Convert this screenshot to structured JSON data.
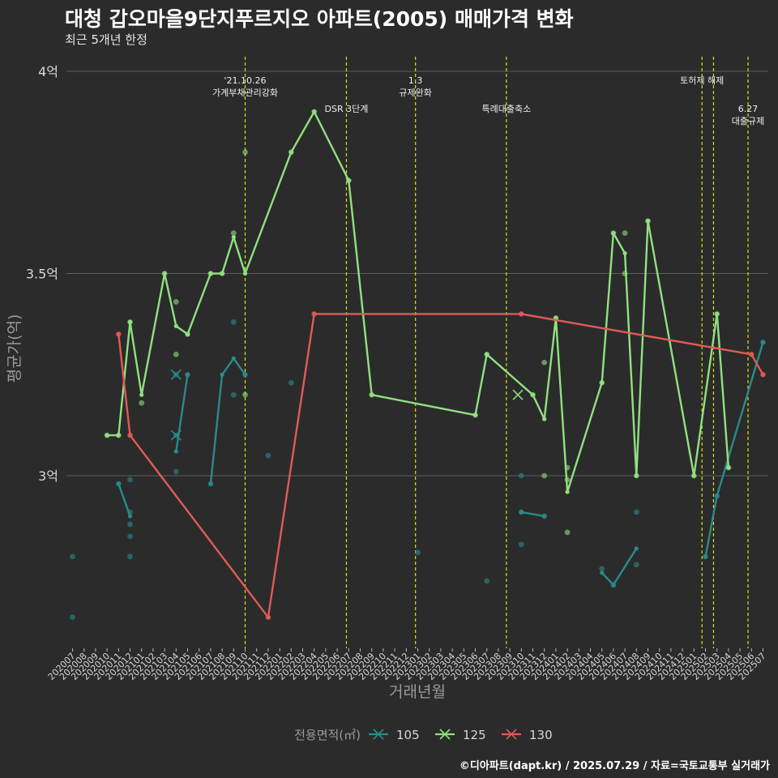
{
  "title": "대청 갑오마을9단지푸르지오 아파트(2005) 매매가격 변화",
  "subtitle": "최근 5개년 한정",
  "caption": "©디아파트(dapt.kr) / 2025.07.29 / 자료=국토교통부 실거래가",
  "chart_data": {
    "type": "line",
    "xlabel": "거래년월",
    "ylabel": "평균가(억)",
    "ylim": [
      2.6,
      4.02
    ],
    "yticks": [
      3.0,
      3.5,
      4.0
    ],
    "ytick_labels": [
      "3억",
      "3.5억",
      "4억"
    ],
    "categories": [
      "202007",
      "202008",
      "202009",
      "202010",
      "202011",
      "202012",
      "202101",
      "202102",
      "202103",
      "202104",
      "202105",
      "202106",
      "202107",
      "202108",
      "202109",
      "202110",
      "202111",
      "202112",
      "202201",
      "202202",
      "202203",
      "202204",
      "202205",
      "202206",
      "202207",
      "202208",
      "202209",
      "202210",
      "202211",
      "202212",
      "202301",
      "202302",
      "202303",
      "202304",
      "202305",
      "202306",
      "202307",
      "202308",
      "202309",
      "202310",
      "202311",
      "202312",
      "202401",
      "202402",
      "202403",
      "202404",
      "202405",
      "202406",
      "202407",
      "202408",
      "202409",
      "202410",
      "202411",
      "202412",
      "202501",
      "202502",
      "202503",
      "202504",
      "202505",
      "202506",
      "202507"
    ],
    "legend_title": "전용면적(㎡)",
    "legend_position": "bottom",
    "grid": "horizontal",
    "events": [
      {
        "x": 15.0,
        "label": "'21.10.26\n가계부채관리강화",
        "label_y": 3.97
      },
      {
        "x": 23.8,
        "label": "DSR 3단계",
        "label_y": 3.9
      },
      {
        "x": 29.8,
        "label": "1.3\n규제완화",
        "label_y": 3.97
      },
      {
        "x": 37.7,
        "label": "특례대출축소",
        "label_y": 3.9
      },
      {
        "x": 54.7,
        "label": "토허제 해제",
        "label_y": 3.97
      },
      {
        "x": 55.7,
        "label": "",
        "label_y": 3.97
      },
      {
        "x": 58.7,
        "label": "6.27\n대출규제",
        "label_y": 3.9
      }
    ],
    "series": [
      {
        "name": "105",
        "color": "#2a8a8a",
        "lines": [
          [
            [
              4,
              2.98
            ],
            [
              5,
              2.9
            ]
          ],
          [
            [
              9,
              3.06
            ],
            [
              10,
              3.25
            ]
          ],
          [
            [
              12,
              2.98
            ],
            [
              13,
              3.25
            ],
            [
              14,
              3.29
            ],
            [
              15,
              3.25
            ]
          ],
          [
            [
              39,
              2.91
            ],
            [
              41,
              2.9
            ]
          ],
          [
            [
              46,
              2.76
            ],
            [
              47,
              2.73
            ],
            [
              49,
              2.82
            ]
          ],
          [
            [
              55,
              2.8
            ],
            [
              56,
              2.95
            ],
            [
              60,
              3.33
            ]
          ]
        ],
        "points": [
          [
            0,
            2.8
          ],
          [
            0,
            2.65
          ],
          [
            4,
            2.98
          ],
          [
            5,
            2.99
          ],
          [
            5,
            2.91
          ],
          [
            5,
            2.88
          ],
          [
            5,
            2.85
          ],
          [
            5,
            2.8
          ],
          [
            9,
            3.25
          ],
          [
            9,
            3.1
          ],
          [
            9,
            3.01
          ],
          [
            10,
            3.25
          ],
          [
            12,
            2.98
          ],
          [
            14,
            3.38
          ],
          [
            14,
            3.2
          ],
          [
            15,
            3.25
          ],
          [
            17,
            3.05
          ],
          [
            19,
            3.23
          ],
          [
            30,
            2.81
          ],
          [
            36,
            2.74
          ],
          [
            39,
            3.0
          ],
          [
            39,
            2.91
          ],
          [
            39,
            2.83
          ],
          [
            41,
            2.9
          ],
          [
            46,
            2.77
          ],
          [
            47,
            2.73
          ],
          [
            49,
            2.91
          ],
          [
            49,
            2.78
          ],
          [
            55,
            2.8
          ],
          [
            56,
            2.95
          ],
          [
            60,
            3.33
          ]
        ],
        "x_markers": [
          [
            9,
            3.25
          ],
          [
            9,
            3.1
          ]
        ]
      },
      {
        "name": "125",
        "color": "#90e080",
        "lines": [
          [
            [
              3,
              3.1
            ],
            [
              4,
              3.1
            ],
            [
              5,
              3.38
            ],
            [
              6,
              3.2
            ],
            [
              8,
              3.5
            ],
            [
              9,
              3.37
            ],
            [
              10,
              3.35
            ],
            [
              12,
              3.5
            ],
            [
              13,
              3.5
            ],
            [
              14,
              3.59
            ],
            [
              15,
              3.5
            ],
            [
              19,
              3.8
            ],
            [
              21,
              3.9
            ],
            [
              24,
              3.73
            ],
            [
              26,
              3.2
            ],
            [
              35,
              3.15
            ],
            [
              36,
              3.3
            ],
            [
              40,
              3.2
            ],
            [
              41,
              3.14
            ],
            [
              42,
              3.39
            ],
            [
              43,
              2.96
            ],
            [
              46,
              3.23
            ],
            [
              47,
              3.6
            ],
            [
              48,
              3.55
            ],
            [
              49,
              3.0
            ],
            [
              50,
              3.63
            ],
            [
              54,
              3.0
            ],
            [
              56,
              3.4
            ],
            [
              57,
              3.02
            ]
          ]
        ],
        "points": [
          [
            3,
            3.1
          ],
          [
            4,
            3.1
          ],
          [
            5,
            3.38
          ],
          [
            6,
            3.18
          ],
          [
            8,
            3.5
          ],
          [
            9,
            3.43
          ],
          [
            9,
            3.3
          ],
          [
            10,
            3.35
          ],
          [
            12,
            3.5
          ],
          [
            13,
            3.5
          ],
          [
            14,
            3.6
          ],
          [
            15,
            3.8
          ],
          [
            15,
            3.2
          ],
          [
            19,
            3.8
          ],
          [
            21,
            3.9
          ],
          [
            24,
            3.73
          ],
          [
            26,
            3.2
          ],
          [
            35,
            3.15
          ],
          [
            36,
            3.3
          ],
          [
            40,
            3.2
          ],
          [
            41,
            3.28
          ],
          [
            41,
            3.0
          ],
          [
            42,
            3.39
          ],
          [
            43,
            3.02
          ],
          [
            43,
            2.99
          ],
          [
            43,
            2.86
          ],
          [
            46,
            3.23
          ],
          [
            47,
            3.6
          ],
          [
            48,
            3.6
          ],
          [
            48,
            3.5
          ],
          [
            49,
            3.0
          ],
          [
            50,
            3.63
          ],
          [
            54,
            3.0
          ],
          [
            56,
            3.4
          ],
          [
            57,
            3.02
          ]
        ],
        "x_markers": [
          [
            38.7,
            3.2
          ]
        ]
      },
      {
        "name": "130",
        "color": "#e05a58",
        "lines": [
          [
            [
              4,
              3.35
            ],
            [
              5,
              3.1
            ],
            [
              17,
              2.65
            ],
            [
              21,
              3.4
            ],
            [
              39,
              3.4
            ],
            [
              59,
              3.3
            ],
            [
              60,
              3.25
            ]
          ]
        ],
        "points": [
          [
            4,
            3.35
          ],
          [
            5,
            3.1
          ],
          [
            17,
            2.65
          ],
          [
            21,
            3.4
          ],
          [
            39,
            3.4
          ],
          [
            59,
            3.3
          ],
          [
            60,
            3.25
          ]
        ],
        "x_markers": []
      }
    ]
  }
}
